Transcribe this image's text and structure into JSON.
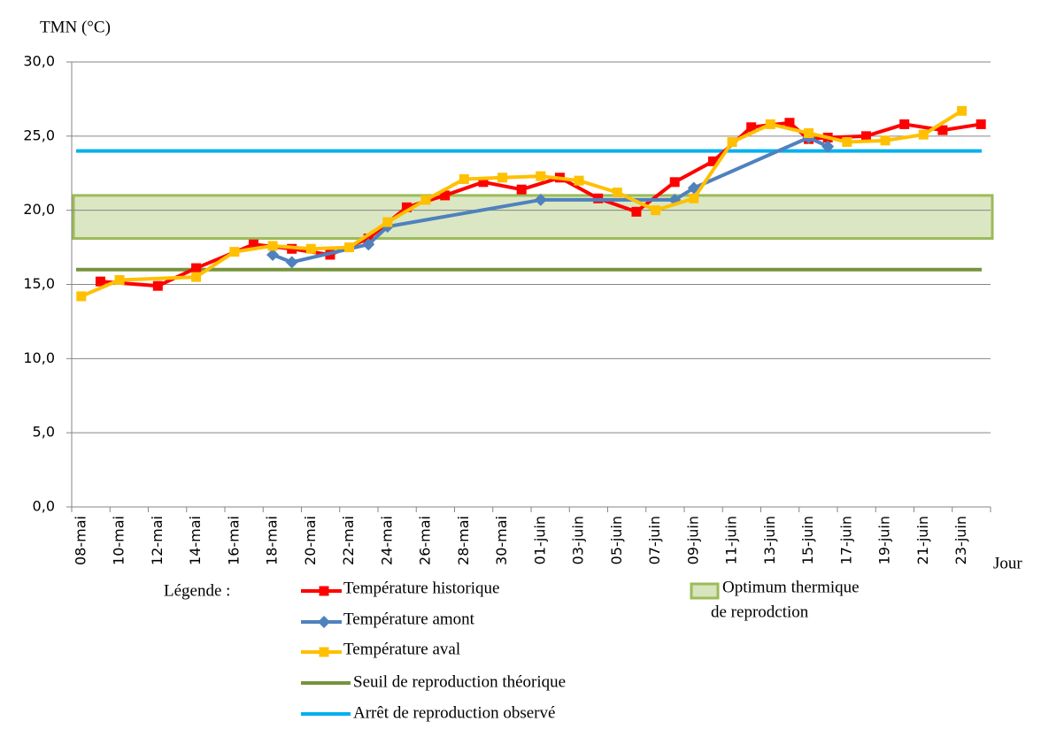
{
  "chart_data": {
    "type": "line",
    "title": "TMN (°C)",
    "x_label": "Jour",
    "legend_title": "Légende :",
    "categories": [
      "08-mai",
      null,
      "10-mai",
      null,
      "12-mai",
      null,
      "14-mai",
      null,
      "16-mai",
      null,
      "18-mai",
      null,
      "20-mai",
      null,
      "22-mai",
      null,
      "24-mai",
      null,
      "26-mai",
      null,
      "28-mai",
      null,
      "30-mai",
      null,
      "01-juin",
      null,
      "03-juin",
      null,
      "05-juin",
      null,
      "07-juin",
      null,
      "09-juin",
      null,
      "11-juin",
      null,
      "13-juin",
      null,
      "15-juin",
      null,
      "17-juin",
      null,
      "19-juin",
      null,
      "21-juin",
      null,
      "23-juin",
      null
    ],
    "series": [
      {
        "name": "Température historique",
        "color": "#ff0000",
        "marker": "square",
        "values": [
          null,
          15.2,
          null,
          null,
          14.9,
          null,
          16.1,
          null,
          null,
          17.7,
          null,
          17.4,
          null,
          17.0,
          null,
          18.1,
          null,
          20.2,
          null,
          21.0,
          null,
          21.9,
          null,
          21.4,
          null,
          22.2,
          null,
          20.8,
          null,
          19.9,
          null,
          21.9,
          null,
          23.3,
          null,
          25.6,
          null,
          25.9,
          24.8,
          24.9,
          null,
          25.0,
          null,
          25.8,
          null,
          25.4,
          null,
          25.8
        ]
      },
      {
        "name": "Température amont",
        "color": "#4f81bd",
        "marker": "diamond",
        "values": [
          null,
          null,
          null,
          null,
          null,
          null,
          null,
          null,
          null,
          null,
          17.0,
          16.5,
          null,
          null,
          null,
          17.7,
          18.9,
          null,
          null,
          null,
          null,
          null,
          null,
          null,
          20.7,
          null,
          null,
          null,
          null,
          null,
          null,
          20.7,
          21.5,
          null,
          null,
          null,
          null,
          null,
          24.9,
          24.3,
          null,
          null,
          null,
          null,
          null,
          null,
          null,
          null
        ]
      },
      {
        "name": "Température aval",
        "color": "#ffc000",
        "marker": "square",
        "values": [
          14.2,
          null,
          15.3,
          null,
          null,
          null,
          15.5,
          null,
          17.2,
          null,
          17.6,
          null,
          17.4,
          null,
          17.5,
          null,
          19.2,
          null,
          20.7,
          null,
          22.1,
          null,
          22.2,
          null,
          22.3,
          null,
          22.0,
          null,
          21.2,
          null,
          20.0,
          null,
          20.8,
          null,
          24.6,
          null,
          25.8,
          null,
          25.2,
          null,
          24.6,
          null,
          24.7,
          null,
          25.1,
          null,
          26.7,
          null
        ]
      }
    ],
    "connect_gaps": true,
    "reference_lines": [
      {
        "name": "Seuil de reproduction théorique",
        "color": "#77933c",
        "value": 16.0
      },
      {
        "name": "Arrêt de reproduction observé",
        "color": "#00b0f0",
        "value": 24.0
      }
    ],
    "band": {
      "name": [
        "Optimum thermique",
        "de reprodction"
      ],
      "low": 18.1,
      "high": 21.0,
      "color": "#d7e4bd",
      "border": "#9bbb59"
    },
    "ylim": [
      0,
      30
    ],
    "yticks": [
      {
        "value": 0,
        "label": "0,0"
      },
      {
        "value": 5,
        "label": "5,0"
      },
      {
        "value": 10,
        "label": "10,0"
      },
      {
        "value": 15,
        "label": "15,0"
      },
      {
        "value": 20,
        "label": "20,0"
      },
      {
        "value": 25,
        "label": "25,0"
      },
      {
        "value": 30,
        "label": "30,0"
      }
    ],
    "grid": true
  }
}
